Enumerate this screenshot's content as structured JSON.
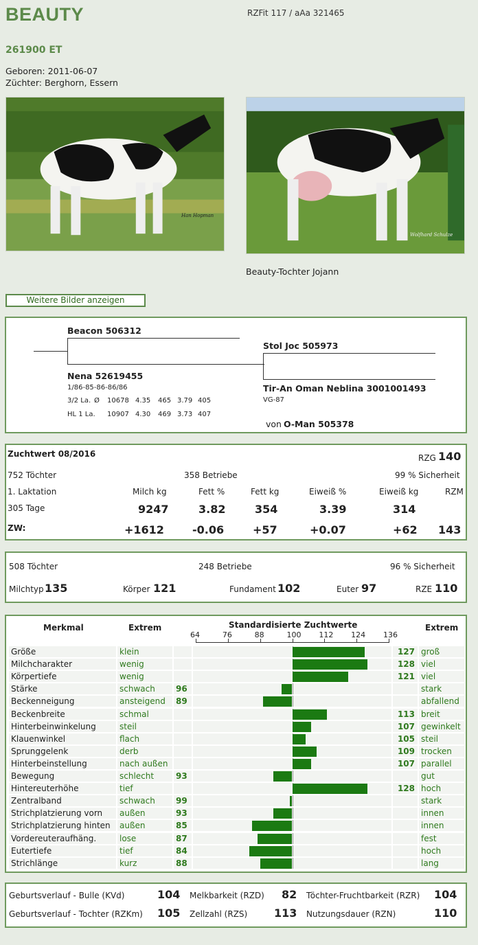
{
  "header": {
    "title": "BEAUTY",
    "rzfit": "RZFit 117 / aAa 321465",
    "reg_nr": "261900 ET",
    "born": "Geboren: 2011-06-07",
    "breeder": "Züchter: Berghorn, Essern"
  },
  "photos": {
    "photo1_credit": "Han Hopman",
    "photo2_credit": "Wolfhard Schulze",
    "photo2_caption": "Beauty-Tochter Jojann"
  },
  "more_button": "Weitere Bilder anzeigen",
  "pedigree": {
    "sire": "Beacon 506312",
    "dam": "Nena 52619455",
    "dam_scores": "1/86-85-86-86/86",
    "dam_lact1_label": "3/2 La.",
    "dam_lact1_sym": "Ø",
    "dam_lact1_values": [
      "10678",
      "4.35",
      "465",
      "3.79",
      "405"
    ],
    "dam_lact2_label": "HL 1 La.",
    "dam_lact2_values": [
      "10907",
      "4.30",
      "469",
      "3.73",
      "407"
    ],
    "mgs": "Stol Joc 505973",
    "mgd": "Tir-An Oman Neblina 3001001493",
    "mgd_score": "VG-87",
    "mgd_sire_prefix": "von",
    "mgd_sire": "O-Man 505378"
  },
  "zuchtwert": {
    "title": "Zuchtwert 08/2016",
    "rzg_label": "RZG",
    "rzg_value": "140",
    "daughters": "752 Töchter",
    "herds": "358 Betriebe",
    "reliability": "99 % Sicherheit",
    "row_label": "1. Laktation",
    "headers": [
      "Milch kg",
      "Fett %",
      "Fett kg",
      "Eiweiß %",
      "Eiweiß kg",
      "RZM"
    ],
    "row1_label": "305 Tage",
    "row1_values": [
      "9247",
      "3.82",
      "354",
      "3.39",
      "314",
      ""
    ],
    "row2_label": "ZW:",
    "row2_values": [
      "+1612",
      "-0.06",
      "+57",
      "+0.07",
      "+62",
      "143"
    ]
  },
  "exterior_summary": {
    "daughters": "508 Töchter",
    "herds": "248 Betriebe",
    "reliability": "96 % Sicherheit",
    "items": [
      {
        "label": "Milchtyp",
        "value": "135"
      },
      {
        "label": "Körper",
        "value": "121"
      },
      {
        "label": "Fundament",
        "value": "102"
      },
      {
        "label": "Euter",
        "value": "97"
      },
      {
        "label": "RZE",
        "value": "110"
      }
    ]
  },
  "exterior": {
    "col_trait": "Merkmal",
    "col_extreme_low": "Extrem",
    "col_chart": "Standardisierte Zuchtwerte",
    "col_extreme_high": "Extrem",
    "scale": [
      64,
      76,
      88,
      100,
      112,
      124,
      136
    ],
    "traits": [
      {
        "name": "Größe",
        "low": "klein",
        "value": 127,
        "high": "groß"
      },
      {
        "name": "Milchcharakter",
        "low": "wenig",
        "value": 128,
        "high": "viel"
      },
      {
        "name": "Körpertiefe",
        "low": "wenig",
        "value": 121,
        "high": "viel"
      },
      {
        "name": "Stärke",
        "low": "schwach",
        "value": 96,
        "high": "stark"
      },
      {
        "name": "Beckenneigung",
        "low": "ansteigend",
        "value": 89,
        "high": "abfallend"
      },
      {
        "name": "Beckenbreite",
        "low": "schmal",
        "value": 113,
        "high": "breit"
      },
      {
        "name": "Hinterbeinwinkelung",
        "low": "steil",
        "value": 107,
        "high": "gewinkelt"
      },
      {
        "name": "Klauenwinkel",
        "low": "flach",
        "value": 105,
        "high": "steil"
      },
      {
        "name": "Sprunggelenk",
        "low": "derb",
        "value": 109,
        "high": "trocken"
      },
      {
        "name": "Hinterbeinstellung",
        "low": "nach außen",
        "value": 107,
        "high": "parallel"
      },
      {
        "name": "Bewegung",
        "low": "schlecht",
        "value": 93,
        "high": "gut"
      },
      {
        "name": "Hintereuterhöhe",
        "low": "tief",
        "value": 128,
        "high": "hoch"
      },
      {
        "name": "Zentralband",
        "low": "schwach",
        "value": 99,
        "high": "stark"
      },
      {
        "name": "Strichplatzierung vorn",
        "low": "außen",
        "value": 93,
        "high": "innen"
      },
      {
        "name": "Strichplatzierung hinten",
        "low": "außen",
        "value": 85,
        "high": "innen"
      },
      {
        "name": "Vordereuteraufhäng.",
        "low": "lose",
        "value": 87,
        "high": "fest"
      },
      {
        "name": "Eutertiefe",
        "low": "tief",
        "value": 84,
        "high": "hoch"
      },
      {
        "name": "Strichlänge",
        "low": "kurz",
        "value": 88,
        "high": "lang"
      }
    ]
  },
  "functional": {
    "items": [
      {
        "label": "Geburtsverlauf - Bulle (KVd)",
        "value": "104"
      },
      {
        "label": "Melkbarkeit (RZD)",
        "value": "82"
      },
      {
        "label": "Töchter-Fruchtbarkeit (RZR)",
        "value": "104"
      },
      {
        "label": "Geburtsverlauf - Tochter (RZKm)",
        "value": "105"
      },
      {
        "label": "Zellzahl (RZS)",
        "value": "113"
      },
      {
        "label": "Nutzungsdauer (RZN)",
        "value": "110"
      }
    ]
  }
}
